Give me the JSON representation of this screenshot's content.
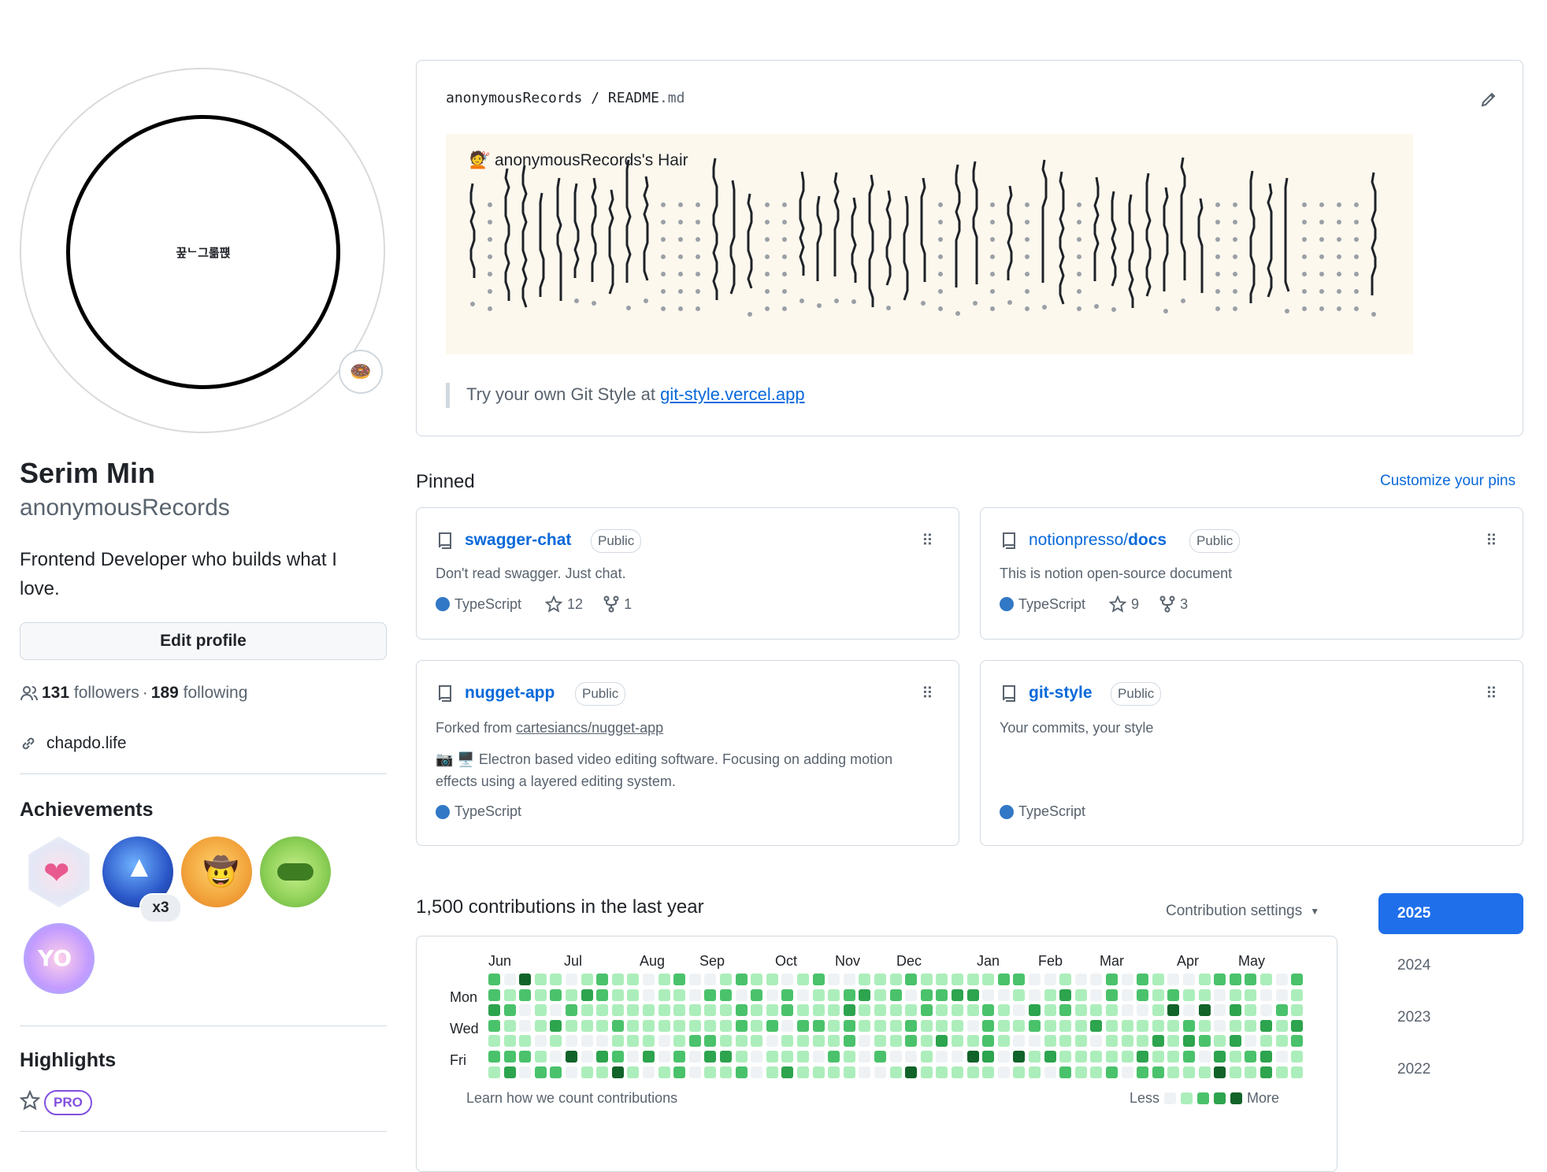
{
  "profile": {
    "avatar_text": "꿒ᄂ그롦퍥",
    "status_emoji": "🍩",
    "name": "Serim Min",
    "login": "anonymousRecords",
    "bio": "Frontend Developer who builds what I love.",
    "edit_profile_label": "Edit profile",
    "followers_count": "131",
    "followers_label": "followers",
    "separator": "·",
    "following_count": "189",
    "following_label": "following",
    "website": "chapdo.life"
  },
  "achievements": {
    "title": "Achievements",
    "multiplier": "x3",
    "badges": [
      "heart-on-your-sleeve",
      "pull-shark",
      "yolo-cowboy",
      "pair-extraordinaire",
      "yolo"
    ]
  },
  "highlights": {
    "title": "Highlights",
    "pro_label": "PRO"
  },
  "readme": {
    "owner": "anonymousRecords",
    "slash": "/",
    "file": "README",
    "ext": ".md",
    "art_emoji": "💇",
    "art_title": "anonymousRecords's Hair",
    "quote_text": "Try your own Git Style at ",
    "quote_link": "git-style.vercel.app"
  },
  "pinned": {
    "title": "Pinned",
    "customize_label": "Customize your pins",
    "public_label": "Public",
    "repos": [
      {
        "name": "swagger-chat",
        "desc": "Don't read swagger. Just chat.",
        "lang": "TypeScript",
        "stars": "12",
        "forks": "1"
      },
      {
        "owner": "notionpresso/",
        "name": "docs",
        "desc": "This is notion open-source document",
        "lang": "TypeScript",
        "stars": "9",
        "forks": "3"
      },
      {
        "name": "nugget-app",
        "forked_prefix": "Forked from ",
        "forked_from": "cartesiancs/nugget-app",
        "desc": "📷 🖥️ Electron based video editing software. Focusing on adding motion effects using a layered editing system.",
        "lang": "TypeScript"
      },
      {
        "name": "git-style",
        "desc": "Your commits, your style",
        "lang": "TypeScript"
      }
    ]
  },
  "contributions": {
    "title": "1,500 contributions in the last year",
    "settings_label": "Contribution settings",
    "months": [
      "Jun",
      "Jul",
      "Aug",
      "Sep",
      "Oct",
      "Nov",
      "Dec",
      "Jan",
      "Feb",
      "Mar",
      "Apr",
      "May"
    ],
    "days": [
      "Mon",
      "Wed",
      "Fri"
    ],
    "learn_label": "Learn how we count contributions",
    "less_label": "Less",
    "more_label": "More",
    "colors": [
      "#eff2f5",
      "#aceebb",
      "#4ac26b",
      "#2da44e",
      "#116329"
    ],
    "years": [
      "2025",
      "2024",
      "2023",
      "2022"
    ],
    "active_year": "2025"
  }
}
